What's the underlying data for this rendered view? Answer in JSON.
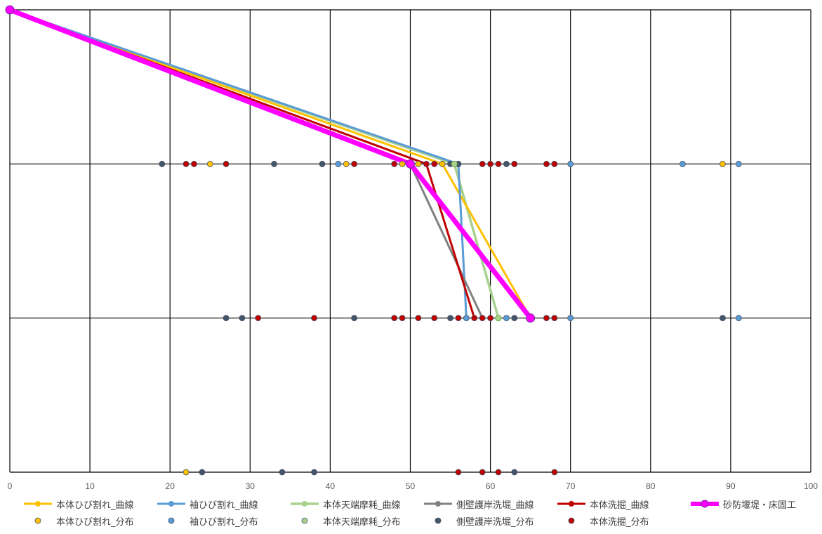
{
  "chart_data": {
    "type": "scatter",
    "title": "",
    "xlabel": "",
    "ylabel": "",
    "xlim": [
      0,
      100
    ],
    "ylim": [
      0,
      3
    ],
    "x_ticks": [
      "0",
      "10",
      "20",
      "30",
      "40",
      "50",
      "60",
      "70",
      "80",
      "90",
      "100"
    ],
    "grid": true,
    "legend_position": "bottom",
    "series": [
      {
        "name": "本体ひび割れ_曲線",
        "kind": "line",
        "color": "#FFC000",
        "width": 3,
        "points": [
          [
            0,
            3
          ],
          [
            54,
            2
          ],
          [
            65,
            1
          ]
        ]
      },
      {
        "name": "袖ひび割れ_曲線",
        "kind": "line",
        "color": "#5B9BD5",
        "width": 3,
        "points": [
          [
            0,
            3
          ],
          [
            56,
            2
          ],
          [
            57,
            1
          ]
        ]
      },
      {
        "name": "本体天端摩耗_曲線",
        "kind": "line",
        "color": "#A9D18E",
        "width": 3.5,
        "marker": "#A9D18E",
        "points": [
          [
            0,
            3
          ],
          [
            55.5,
            2
          ],
          [
            61,
            1
          ]
        ]
      },
      {
        "name": "側壁護岸洗堀_曲線",
        "kind": "line",
        "color": "#808080",
        "width": 3,
        "points": [
          [
            0,
            3
          ],
          [
            50,
            2
          ],
          [
            59,
            1
          ]
        ]
      },
      {
        "name": "本体洗掘_曲線",
        "kind": "line",
        "color": "#C00000",
        "width": 3,
        "points": [
          [
            0,
            3
          ],
          [
            52,
            2
          ],
          [
            58,
            1
          ]
        ]
      },
      {
        "name": "砂防堰堤・床固工",
        "kind": "line",
        "color": "#FF00FF",
        "width": 7,
        "marker": "#FF00FF",
        "points": [
          [
            0,
            3
          ],
          [
            50,
            2
          ],
          [
            65,
            1
          ]
        ]
      },
      {
        "name": "本体ひび割れ_分布",
        "kind": "scatter",
        "color": "#FFC000",
        "points": [
          [
            25,
            2
          ],
          [
            42,
            2
          ],
          [
            49,
            2
          ],
          [
            51,
            2
          ],
          [
            54,
            2
          ],
          [
            89,
            2
          ],
          [
            22,
            0
          ]
        ]
      },
      {
        "name": "袖ひび割れ_分布",
        "kind": "scatter",
        "color": "#5B9BD5",
        "points": [
          [
            41,
            2
          ],
          [
            56,
            2
          ],
          [
            70,
            2
          ],
          [
            84,
            2
          ],
          [
            91,
            2
          ],
          [
            57,
            1
          ],
          [
            62,
            1
          ],
          [
            70,
            1
          ],
          [
            91,
            1
          ]
        ]
      },
      {
        "name": "本体天端摩耗_分布",
        "kind": "scatter",
        "color": "#A9D18E",
        "points": [
          [
            55.5,
            2
          ],
          [
            61,
            1
          ]
        ]
      },
      {
        "name": "側壁護岸洗堀_分布",
        "kind": "scatter",
        "color": "#44546A",
        "points": [
          [
            19,
            2
          ],
          [
            33,
            2
          ],
          [
            39,
            2
          ],
          [
            55,
            2
          ],
          [
            56,
            2
          ],
          [
            62,
            2
          ],
          [
            27,
            1
          ],
          [
            29,
            1
          ],
          [
            43,
            1
          ],
          [
            55,
            1
          ],
          [
            63,
            1
          ],
          [
            89,
            1
          ],
          [
            24,
            0
          ],
          [
            34,
            0
          ],
          [
            38,
            0
          ],
          [
            63,
            0
          ]
        ]
      },
      {
        "name": "本体洗掘_分布",
        "kind": "scatter",
        "color": "#C00000",
        "points": [
          [
            22,
            2
          ],
          [
            23,
            2
          ],
          [
            27,
            2
          ],
          [
            43,
            2
          ],
          [
            48,
            2
          ],
          [
            52,
            2
          ],
          [
            53,
            2
          ],
          [
            59,
            2
          ],
          [
            60,
            2
          ],
          [
            61,
            2
          ],
          [
            63,
            2
          ],
          [
            67,
            2
          ],
          [
            68,
            2
          ],
          [
            31,
            1
          ],
          [
            38,
            1
          ],
          [
            48,
            1
          ],
          [
            49,
            1
          ],
          [
            51,
            1
          ],
          [
            53,
            1
          ],
          [
            56,
            1
          ],
          [
            58,
            1
          ],
          [
            59,
            1
          ],
          [
            60,
            1
          ],
          [
            67,
            1
          ],
          [
            68,
            1
          ],
          [
            56,
            0
          ],
          [
            59,
            0
          ],
          [
            61,
            0
          ],
          [
            68,
            0
          ]
        ]
      }
    ]
  }
}
